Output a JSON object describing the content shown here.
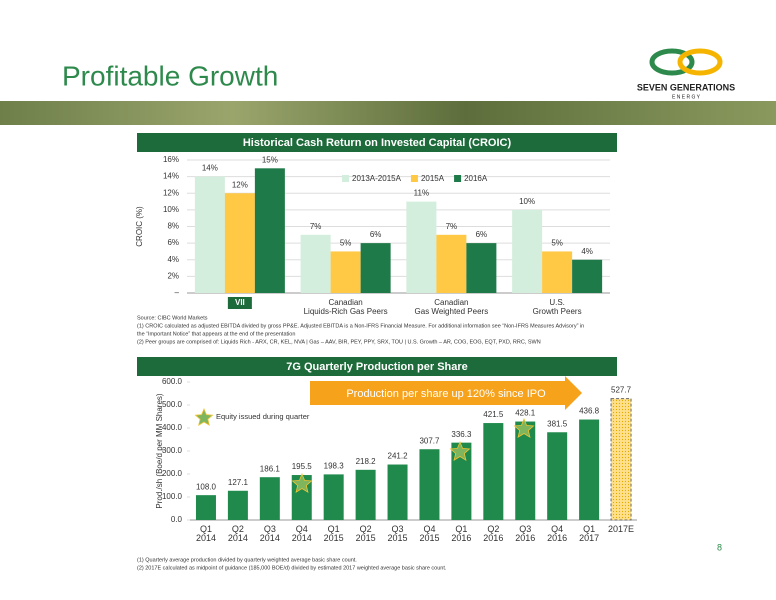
{
  "header": {
    "title": "Profitable Growth",
    "logo": {
      "name": "SEVEN GENERATIONS",
      "sub": "E N E R G Y"
    }
  },
  "chart_data": [
    {
      "type": "bar",
      "title": "Historical Cash Return on Invested Capital (CROIC)",
      "ylabel": "CROIC (%)",
      "categories": [
        "VII",
        "Canadian\nLiquids-Rich Gas Peers",
        "Canadian\nGas Weighted Peers",
        "U.S.\nGrowth Peers"
      ],
      "series": [
        {
          "name": "2013A-2015A",
          "color": "#d3eedc",
          "values": [
            14,
            7,
            11,
            10
          ],
          "value_labels": [
            "14%",
            "7%",
            "11%",
            "10%"
          ]
        },
        {
          "name": "2015A",
          "color": "#ffc845",
          "values": [
            12,
            5,
            7,
            5
          ],
          "value_labels": [
            "12%",
            "5%",
            "7%",
            "5%"
          ]
        },
        {
          "name": "2016A",
          "color": "#1e7a48",
          "values": [
            15,
            6,
            6,
            4
          ],
          "value_labels": [
            "15%",
            "6%",
            "6%",
            "4%"
          ]
        }
      ],
      "ylim": [
        0,
        16
      ],
      "yticks": [
        {
          "value": 0,
          "label": "–"
        },
        {
          "value": 2,
          "label": "2%"
        },
        {
          "value": 4,
          "label": "4%"
        },
        {
          "value": 6,
          "label": "6%"
        },
        {
          "value": 8,
          "label": "8%"
        },
        {
          "value": 10,
          "label": "10%"
        },
        {
          "value": 12,
          "label": "12%"
        },
        {
          "value": 14,
          "label": "14%"
        },
        {
          "value": 16,
          "label": "16%"
        }
      ],
      "grid": true,
      "legend": "top-right",
      "notes": [
        "Source: CIBC World Markets",
        "(1)     CROIC calculated as adjusted EBITDA divided by gross PP&E. Adjusted EBITDA is a Non-IFRS Financial Measure. For additional information see “Non-IFRS Measures Advisory” in",
        "          the “Important Notice” that appears at the end of the presentation",
        "(2)     Peer groups are comprised of: Liquids Rich - ARX, CR, KEL, NVA | Gas – AAV, BIR, PEY, PPY, SRX, TOU | U.S. Growth – AR, COG, EOG, EQT, PXD, RRC, SWN"
      ]
    },
    {
      "type": "bar",
      "title": "7G Quarterly Production per Share",
      "ylabel": "Prod./sh (Boe/d per MM Shares)",
      "categories": [
        "Q1\n2014",
        "Q2\n2014",
        "Q3\n2014",
        "Q4\n2014",
        "Q1\n2015",
        "Q2\n2015",
        "Q3\n2015",
        "Q4\n2015",
        "Q1\n2016",
        "Q2\n2016",
        "Q3\n2016",
        "Q4\n2016",
        "Q1\n2017",
        "2017E"
      ],
      "values": [
        108.0,
        127.1,
        186.1,
        195.5,
        198.3,
        218.2,
        241.2,
        307.7,
        336.3,
        421.5,
        428.1,
        381.5,
        436.8,
        527.7
      ],
      "value_labels": [
        "108.0",
        "127.1",
        "186.1",
        "195.5",
        "198.3",
        "218.2",
        "241.2",
        "307.7",
        "336.3",
        "421.5",
        "428.1",
        "381.5",
        "436.8",
        "527.7"
      ],
      "color": "#1f8a4c",
      "colors": [
        "#1f8a4c",
        "#1f8a4c",
        "#1f8a4c",
        "#1f8a4c",
        "#1f8a4c",
        "#1f8a4c",
        "#1f8a4c",
        "#1f8a4c",
        "#1f8a4c",
        "#1f8a4c",
        "#1f8a4c",
        "#1f8a4c",
        "#1f8a4c",
        "#ffd76a"
      ],
      "ylim": [
        0,
        600
      ],
      "yticks": [
        {
          "value": 0,
          "label": "0.0"
        },
        {
          "value": 100,
          "label": "100.0"
        },
        {
          "value": 200,
          "label": "200.0"
        },
        {
          "value": 300,
          "label": "300.0"
        },
        {
          "value": 400,
          "label": "400.0"
        },
        {
          "value": 500,
          "label": "500.0"
        },
        {
          "value": 600,
          "label": "600.0"
        }
      ],
      "grid": false,
      "annotations": [
        "Production per share up 120% since IPO",
        "Equity issued during quarter"
      ],
      "notes": [
        "(1)     Quarterly average production divided by quarterly weighted average basic share count.",
        "(2)     2017E calculated as midpoint of guidance (185,000 BOE/d) divided by estimated 2017 weighted average basic share count."
      ]
    }
  ],
  "page_number": "8"
}
